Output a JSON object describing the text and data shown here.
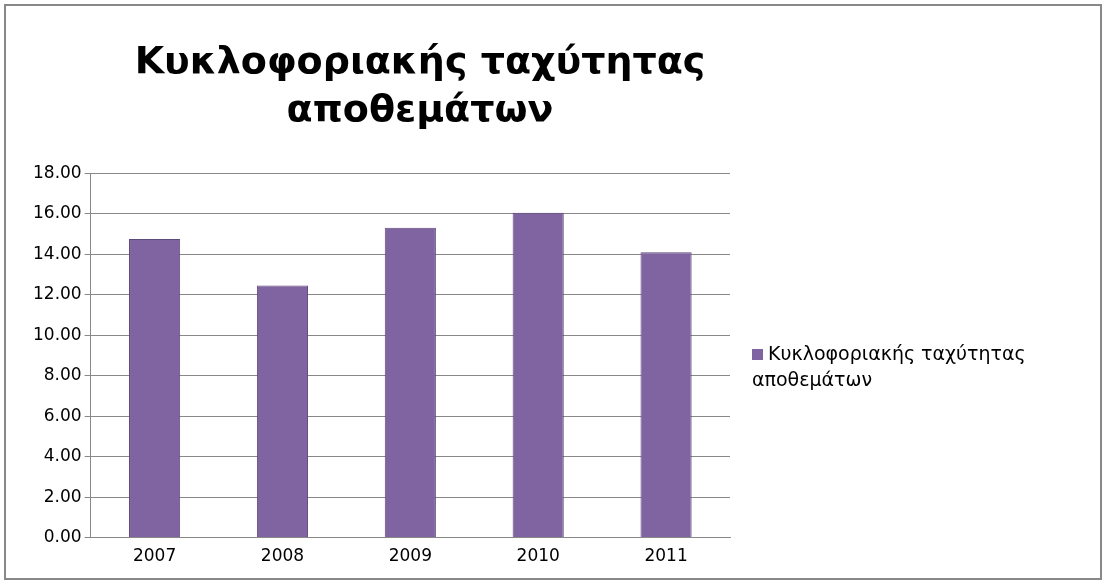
{
  "chart_data": {
    "type": "bar",
    "title": "Κυκλοφοριακής ταχύτητας αποθεμάτων",
    "categories": [
      "2007",
      "2008",
      "2009",
      "2010",
      "2011"
    ],
    "series": [
      {
        "name": "Κυκλοφοριακής ταχύτητας αποθεμάτων",
        "color": "#8064a2",
        "values": [
          14.75,
          12.45,
          15.3,
          16.05,
          14.1
        ]
      }
    ],
    "ylim": [
      0,
      18
    ],
    "yticks": [
      {
        "value": 0,
        "label": "0.00"
      },
      {
        "value": 2,
        "label": "2.00"
      },
      {
        "value": 4,
        "label": "4.00"
      },
      {
        "value": 6,
        "label": "6.00"
      },
      {
        "value": 8,
        "label": "8.00"
      },
      {
        "value": 10,
        "label": "10.00"
      },
      {
        "value": 12,
        "label": "12.00"
      },
      {
        "value": 14,
        "label": "14.00"
      },
      {
        "value": 16,
        "label": "16.00"
      },
      {
        "value": 18,
        "label": "18.00"
      }
    ],
    "grid": "y",
    "legend": "right"
  }
}
